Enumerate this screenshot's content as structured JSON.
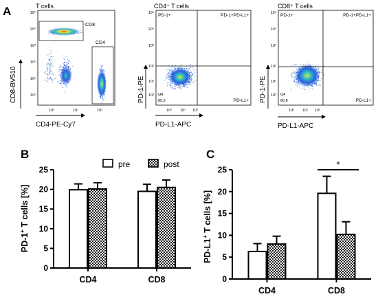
{
  "panel_labels": {
    "a": "A",
    "b": "B",
    "c": "C"
  },
  "legend": {
    "pre": "pre",
    "post": "post"
  },
  "colors": {
    "bar_fill": "#ffffff",
    "hatch": "#000000",
    "axis": "#000000",
    "density_low": "#1f3fd0",
    "density_mid": "#2ec4c4",
    "density_high": "#f0e020",
    "density_peak": "#e03020"
  },
  "chart_data": [
    {
      "type": "scatter",
      "title": "T cells",
      "xlabel": "CD4-PE-Cy7",
      "ylabel": "CD8-BV510",
      "x_ticks": [
        "10²",
        "10¹",
        "10²"
      ],
      "y_ticks": [
        "10²",
        "10¹",
        "10²",
        "10³",
        "10⁴",
        "10⁵"
      ],
      "gates": [
        "CD8",
        "CD4"
      ],
      "populations": [
        {
          "name": "CD8",
          "x_log": 0.0,
          "y_log": 4.55
        },
        {
          "name": "CD4",
          "x_log": 2.8,
          "y_log": 1.0
        },
        {
          "name": "double negative",
          "x_log": -0.2,
          "y_log": 1.4
        }
      ]
    },
    {
      "type": "scatter",
      "title": "CD4⁺ T cells",
      "xlabel": "PD-L1-APC",
      "ylabel": "PD-1-PE",
      "x_ticks": [
        "10²",
        "10¹",
        "10²"
      ],
      "y_ticks": [
        "10²",
        "10¹",
        "10²",
        "10³",
        "10⁴",
        "10⁵"
      ],
      "quadrants": {
        "ul": "PD-1+",
        "ur": "PD-1+PD-L1+",
        "lr": "PD-L1+",
        "ll": "Q4"
      },
      "q4_value": "85,5"
    },
    {
      "type": "scatter",
      "title": "CD8⁺ T cells",
      "xlabel": "PD-L1-APC",
      "ylabel": "PD-1-PE",
      "x_ticks": [
        "10²",
        "10¹",
        "10²"
      ],
      "y_ticks": [
        "10²",
        "10¹",
        "10²",
        "10³",
        "10⁴",
        "10⁵"
      ],
      "quadrants": {
        "ul": "PD-1+",
        "ur": "PD-1+PD-L1+",
        "lr": "PD-L1+",
        "ll": "Q4"
      },
      "q4_value": "80,8"
    },
    {
      "type": "bar",
      "categories": [
        "CD4",
        "CD8"
      ],
      "ylabel_main": "PD-1",
      "ylabel_sup": "+",
      "ylabel_rest": " T cells [%]",
      "ylim": [
        0,
        25
      ],
      "y_ticks": [
        0,
        5,
        10,
        15,
        20,
        25
      ],
      "series": [
        {
          "name": "pre",
          "values": [
            19.9,
            19.5
          ],
          "errors": [
            1.5,
            1.8
          ]
        },
        {
          "name": "post",
          "values": [
            20.1,
            20.5
          ],
          "errors": [
            1.6,
            1.9
          ]
        }
      ]
    },
    {
      "type": "bar",
      "categories": [
        "CD4",
        "CD8"
      ],
      "ylabel_main": "PD-L1",
      "ylabel_sup": "+",
      "ylabel_rest": " T cells [%]",
      "ylim": [
        0,
        25
      ],
      "y_ticks": [
        0,
        5,
        10,
        15,
        20,
        25
      ],
      "series": [
        {
          "name": "pre",
          "values": [
            6.3,
            19.6
          ],
          "errors": [
            1.8,
            3.9
          ]
        },
        {
          "name": "post",
          "values": [
            8.0,
            10.2
          ],
          "errors": [
            1.8,
            2.9
          ]
        }
      ],
      "significance": {
        "label": "*",
        "category": "CD8"
      }
    }
  ]
}
